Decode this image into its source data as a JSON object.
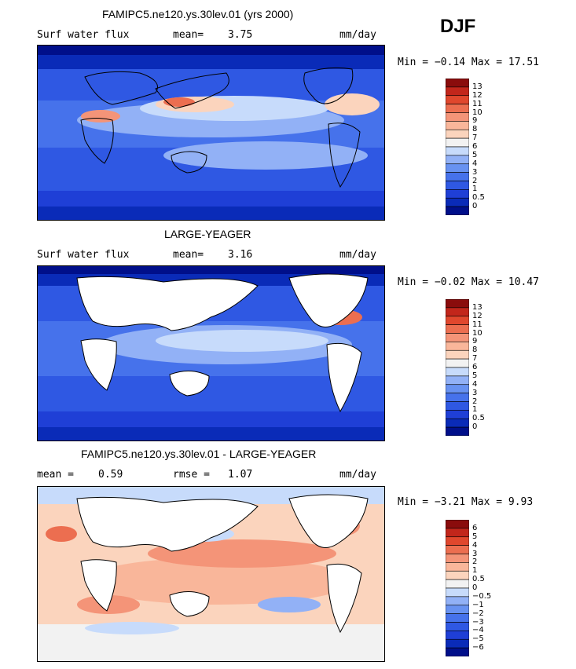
{
  "season": "DJF",
  "colors": {
    "blue_dark": "#000f8a",
    "blue": "#1f3fd6",
    "blue_mid": "#5a86ee",
    "blue_light": "#c7dbfb",
    "white": "#f2f2f2",
    "peach": "#fbd4bd",
    "orange": "#f49478",
    "red": "#e0472d",
    "red_dark": "#8a0c0c",
    "land": "#ffffff"
  },
  "panels": [
    {
      "title": "FAMIPC5.ne120.ys.30lev.01 (yrs 2000)",
      "left_label": "Surf water flux",
      "mid_label": "mean=",
      "mid_value": "3.75",
      "units": "mm/day",
      "minmax": "Min =  −0.14 Max =  17.51"
    },
    {
      "title": "LARGE-YEAGER",
      "left_label": "Surf water flux",
      "mid_label": "mean=",
      "mid_value": "3.16",
      "units": "mm/day",
      "minmax": "Min =  −0.02 Max =  10.47"
    },
    {
      "title": "FAMIPC5.ne120.ys.30lev.01 - LARGE-YEAGER",
      "left_label": "mean =",
      "left_value": "0.59",
      "mid_label": "rmse =",
      "mid_value": "1.07",
      "units": "mm/day",
      "minmax": "Min =  −3.21 Max =   9.93"
    }
  ],
  "chart_data": [
    {
      "type": "heatmap",
      "title": "FAMIPC5.ne120.ys.30lev.01 (yrs 2000)",
      "field": "Surf water flux",
      "units": "mm/day",
      "mean": 3.75,
      "min": -0.14,
      "max": 17.51,
      "colorbar_levels": [
        "0",
        "0.5",
        "1",
        "2",
        "3",
        "4",
        "5",
        "6",
        "7",
        "8",
        "9",
        "10",
        "11",
        "12",
        "13"
      ],
      "colorbar_colors": [
        "#000f8a",
        "#0a2bb8",
        "#1f3fd6",
        "#2f58e3",
        "#4672eb",
        "#6892f1",
        "#92b1f6",
        "#c7dbfb",
        "#f2f2f2",
        "#fbd4bd",
        "#f9b69a",
        "#f49478",
        "#ec6e50",
        "#e0472d",
        "#c2261b",
        "#8a0c0c"
      ]
    },
    {
      "type": "heatmap",
      "title": "LARGE-YEAGER",
      "field": "Surf water flux",
      "units": "mm/day",
      "mean": 3.16,
      "min": -0.02,
      "max": 10.47,
      "colorbar_levels": [
        "0",
        "0.5",
        "1",
        "2",
        "3",
        "4",
        "5",
        "6",
        "7",
        "8",
        "9",
        "10",
        "11",
        "12",
        "13"
      ],
      "colorbar_colors": [
        "#000f8a",
        "#0a2bb8",
        "#1f3fd6",
        "#2f58e3",
        "#4672eb",
        "#6892f1",
        "#92b1f6",
        "#c7dbfb",
        "#f2f2f2",
        "#fbd4bd",
        "#f9b69a",
        "#f49478",
        "#ec6e50",
        "#e0472d",
        "#c2261b",
        "#8a0c0c"
      ]
    },
    {
      "type": "heatmap",
      "title": "FAMIPC5.ne120.ys.30lev.01 - LARGE-YEAGER",
      "units": "mm/day",
      "mean": 0.59,
      "rmse": 1.07,
      "min": -3.21,
      "max": 9.93,
      "colorbar_levels": [
        "−6",
        "−5",
        "−4",
        "−3",
        "−2",
        "−1",
        "−0.5",
        "0",
        "0.5",
        "1",
        "2",
        "3",
        "4",
        "5",
        "6"
      ],
      "colorbar_colors": [
        "#000f8a",
        "#0a2bb8",
        "#1f3fd6",
        "#2f58e3",
        "#4672eb",
        "#6892f1",
        "#92b1f6",
        "#c7dbfb",
        "#f2f2f2",
        "#fbd4bd",
        "#f9b69a",
        "#f49478",
        "#ec6e50",
        "#e0472d",
        "#c2261b",
        "#8a0c0c"
      ]
    }
  ]
}
